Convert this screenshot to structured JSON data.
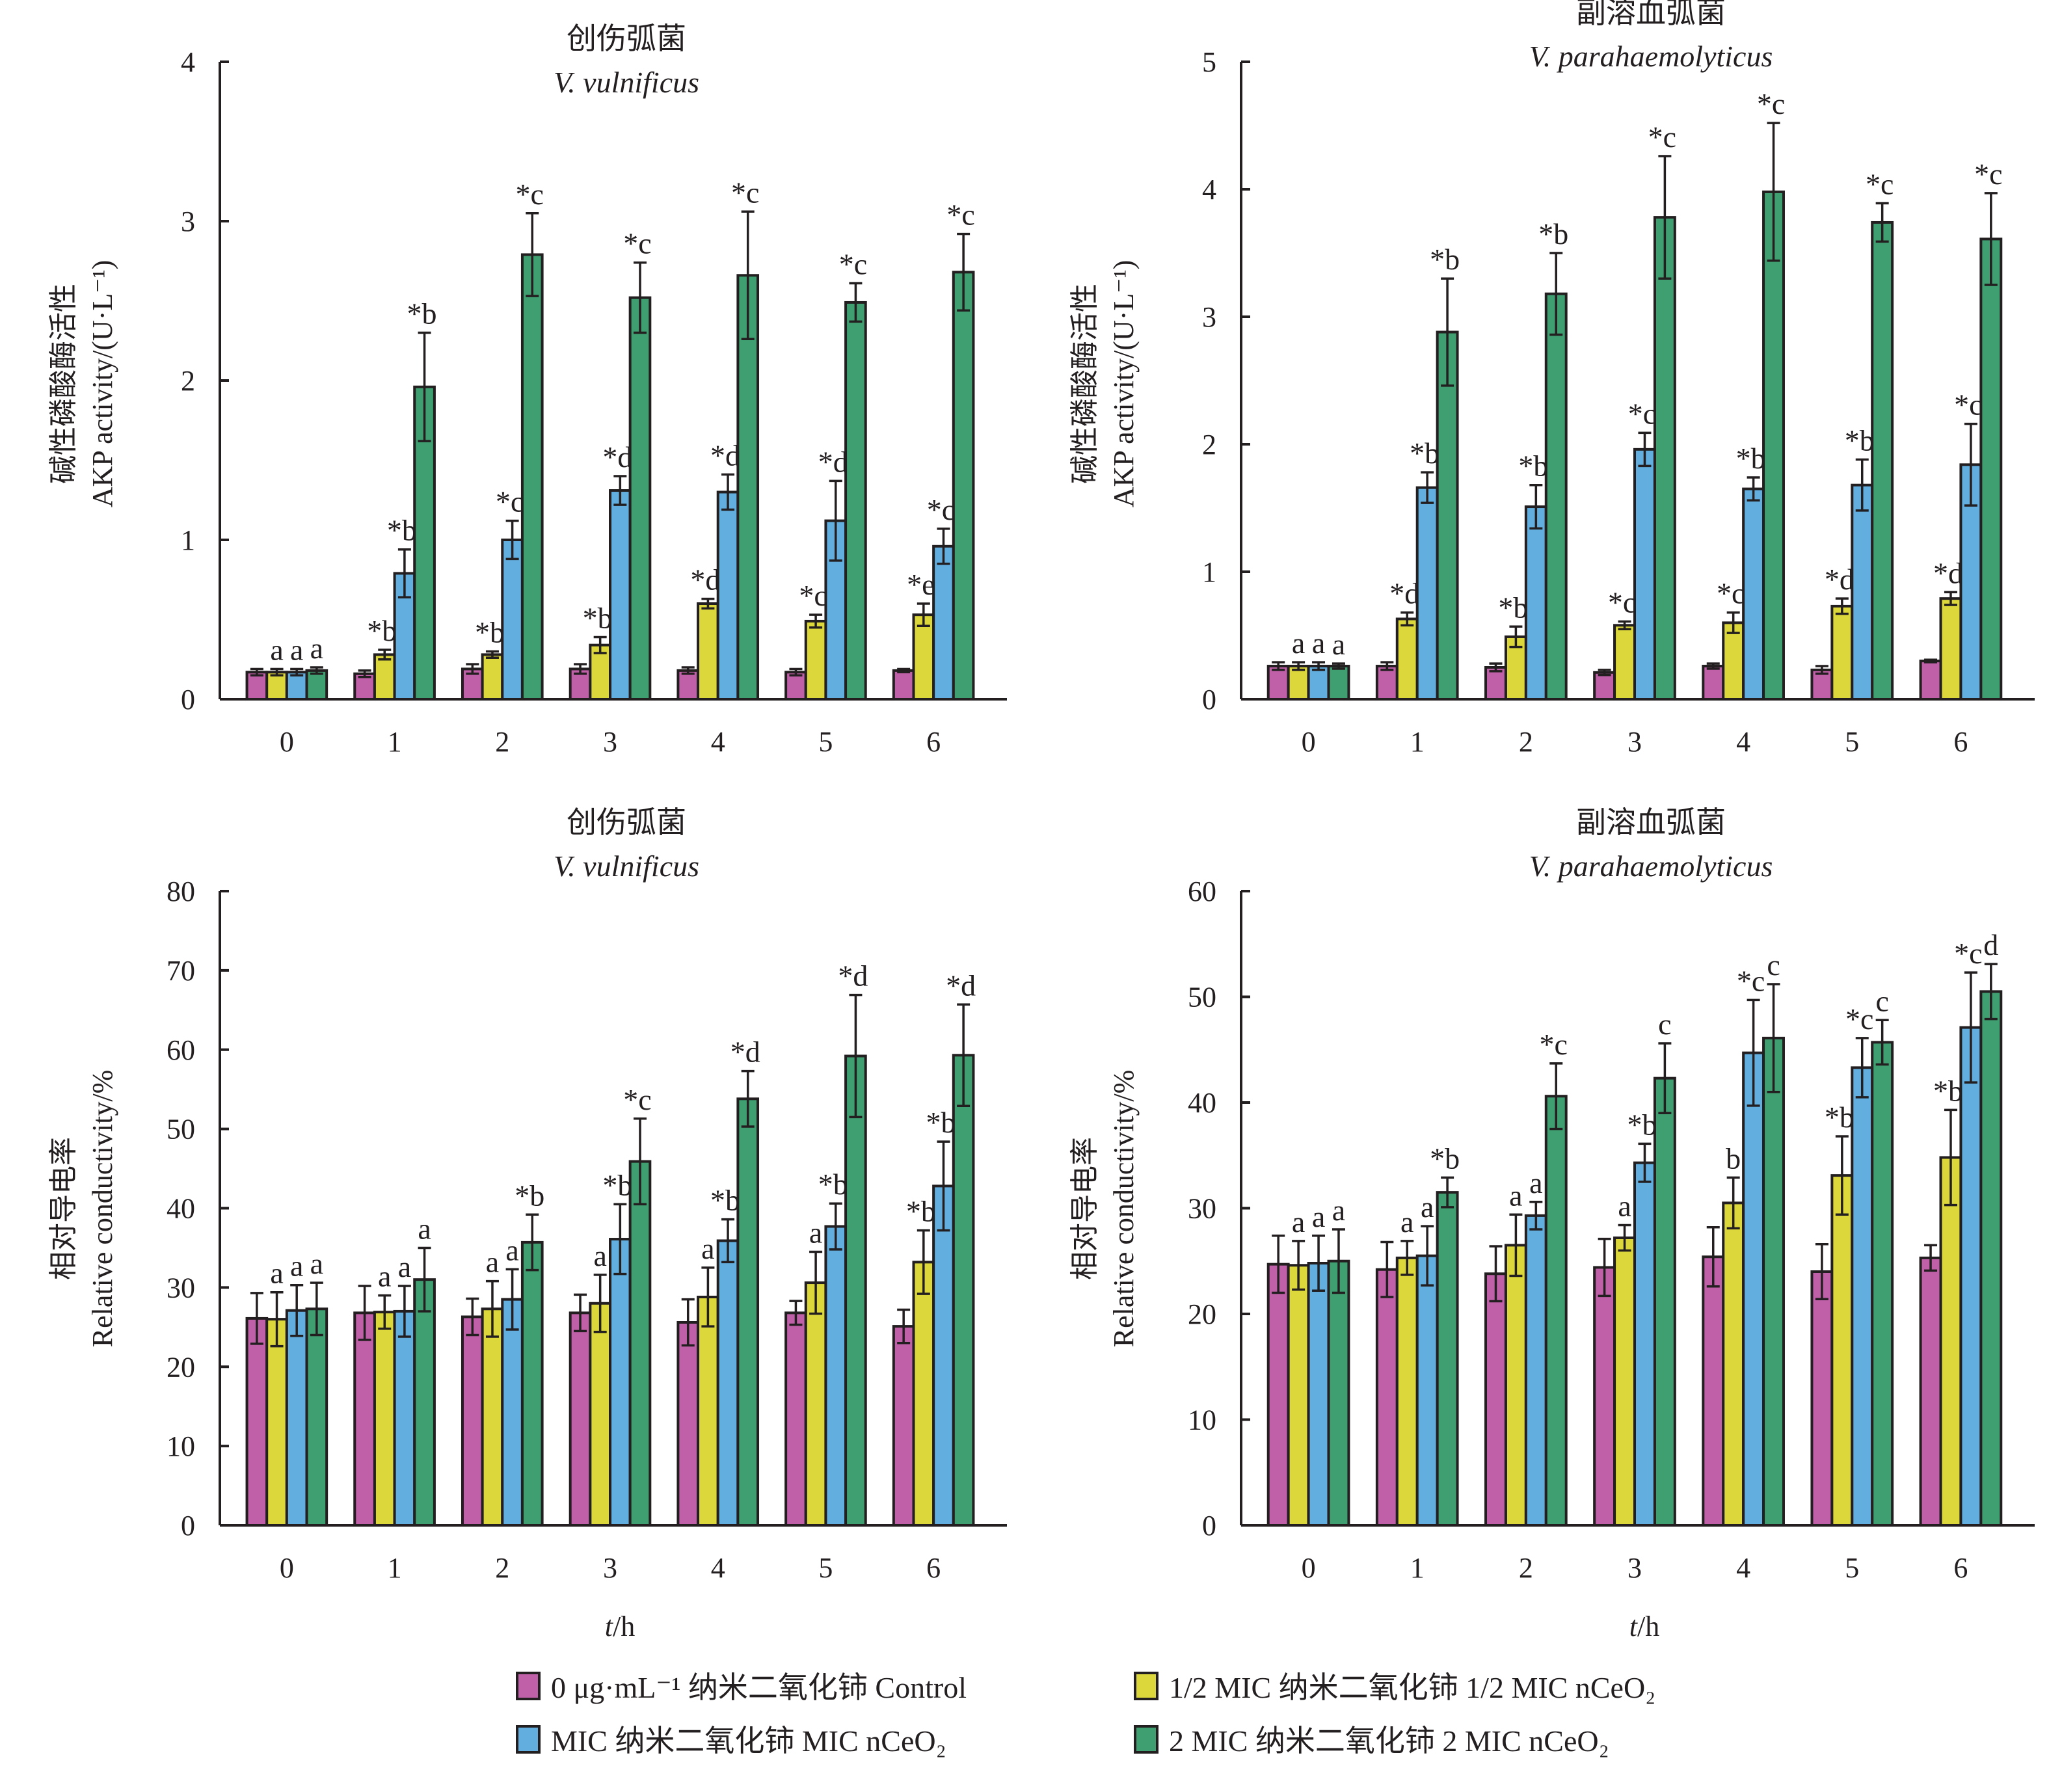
{
  "colors": {
    "control": "#c060a8",
    "half_mic": "#dcd83c",
    "mic": "#62aede",
    "two_mic": "#3f9f71",
    "stroke": "#231f20"
  },
  "legend": {
    "items": [
      {
        "key": "control",
        "label": "0 μg·mL⁻¹ 纳米二氧化铈 Control"
      },
      {
        "key": "half_mic",
        "label": "1/2 MIC 纳米二氧化铈  1/2 MIC nCeO₂"
      },
      {
        "key": "mic",
        "label": "MIC 纳米二氧化铈 MIC nCeO₂"
      },
      {
        "key": "two_mic",
        "label": "2 MIC 纳米二氧化铈  2 MIC nCeO₂"
      }
    ]
  },
  "chart_data": [
    {
      "id": "akp-vulnificus",
      "type": "bar",
      "title_cn": "创伤弧菌",
      "title_en": "V. vulnificus",
      "ylabel_cn": "碱性磷酸酶活性",
      "ylabel_en": "AKP activity/(U·L⁻¹)",
      "xlabel": "",
      "ylim": [
        0,
        4
      ],
      "yticks": [
        "0",
        "1",
        "2",
        "3",
        "4"
      ],
      "categories": [
        "0",
        "1",
        "2",
        "3",
        "4",
        "5",
        "6"
      ],
      "series": [
        {
          "name": "Control",
          "key": "control",
          "values": [
            0.17,
            0.16,
            0.19,
            0.19,
            0.18,
            0.17,
            0.18
          ],
          "errors": [
            0.02,
            0.02,
            0.03,
            0.03,
            0.02,
            0.02,
            0.01
          ],
          "labels": [
            "",
            "",
            "",
            "",
            "",
            "",
            ""
          ]
        },
        {
          "name": "1/2 MIC nCeO2",
          "key": "half_mic",
          "values": [
            0.17,
            0.28,
            0.28,
            0.34,
            0.6,
            0.49,
            0.53
          ],
          "errors": [
            0.02,
            0.03,
            0.02,
            0.05,
            0.03,
            0.04,
            0.07
          ],
          "labels": [
            "a",
            "*b",
            "*b",
            "*b",
            "*d",
            "*c",
            "*e"
          ]
        },
        {
          "name": "MIC nCeO2",
          "key": "mic",
          "values": [
            0.17,
            0.79,
            1.0,
            1.31,
            1.3,
            1.12,
            0.96
          ],
          "errors": [
            0.02,
            0.15,
            0.12,
            0.09,
            0.11,
            0.25,
            0.11
          ],
          "labels": [
            "a",
            "*b",
            "*c",
            "*d",
            "*d",
            "*d",
            "*c"
          ]
        },
        {
          "name": "2 MIC nCeO2",
          "key": "two_mic",
          "values": [
            0.18,
            1.96,
            2.79,
            2.52,
            2.66,
            2.49,
            2.68
          ],
          "errors": [
            0.02,
            0.34,
            0.26,
            0.22,
            0.4,
            0.12,
            0.24
          ],
          "labels": [
            "a",
            "*b",
            "*c",
            "*c",
            "*c",
            "*c",
            "*c"
          ]
        }
      ]
    },
    {
      "id": "akp-parahaemolyticus",
      "type": "bar",
      "title_cn": "副溶血弧菌",
      "title_en": "V. parahaemolyticus",
      "ylabel_cn": "碱性磷酸酶活性",
      "ylabel_en": "AKP activity/(U·L⁻¹)",
      "xlabel": "",
      "ylim": [
        0,
        5
      ],
      "yticks": [
        "0",
        "1",
        "2",
        "3",
        "4",
        "5"
      ],
      "categories": [
        "0",
        "1",
        "2",
        "3",
        "4",
        "5",
        "6"
      ],
      "series": [
        {
          "name": "Control",
          "key": "control",
          "values": [
            0.26,
            0.26,
            0.25,
            0.21,
            0.26,
            0.23,
            0.3
          ],
          "errors": [
            0.03,
            0.03,
            0.03,
            0.02,
            0.02,
            0.03,
            0.01
          ],
          "labels": [
            "",
            "",
            "",
            "",
            "",
            "",
            ""
          ]
        },
        {
          "name": "1/2 MIC nCeO2",
          "key": "half_mic",
          "values": [
            0.26,
            0.63,
            0.49,
            0.58,
            0.6,
            0.73,
            0.79
          ],
          "errors": [
            0.03,
            0.05,
            0.08,
            0.03,
            0.08,
            0.06,
            0.05
          ],
          "labels": [
            "a",
            "*d",
            "*b",
            "*c",
            "*c",
            "*d",
            "*d"
          ]
        },
        {
          "name": "MIC nCeO2",
          "key": "mic",
          "values": [
            0.26,
            1.66,
            1.51,
            1.96,
            1.65,
            1.68,
            1.84
          ],
          "errors": [
            0.03,
            0.12,
            0.17,
            0.13,
            0.09,
            0.2,
            0.32
          ],
          "labels": [
            "a",
            "*b",
            "*b",
            "*c",
            "*b",
            "*b",
            "*c"
          ]
        },
        {
          "name": "2 MIC nCeO2",
          "key": "two_mic",
          "values": [
            0.26,
            2.88,
            3.18,
            3.78,
            3.98,
            3.74,
            3.61
          ],
          "errors": [
            0.02,
            0.42,
            0.32,
            0.48,
            0.54,
            0.15,
            0.36
          ],
          "labels": [
            "a",
            "*b",
            "*b",
            "*c",
            "*c",
            "*c",
            "*c"
          ]
        }
      ]
    },
    {
      "id": "conductivity-vulnificus",
      "type": "bar",
      "title_cn": "创伤弧菌",
      "title_en": "V. vulnificus",
      "ylabel_cn": "相对导电率",
      "ylabel_en": "Relative conductivity/%",
      "xlabel": "t/h",
      "ylim": [
        0,
        80
      ],
      "yticks": [
        "0",
        "10",
        "20",
        "30",
        "40",
        "50",
        "60",
        "70",
        "80"
      ],
      "categories": [
        "0",
        "1",
        "2",
        "3",
        "4",
        "5",
        "6"
      ],
      "series": [
        {
          "name": "Control",
          "key": "control",
          "values": [
            26.1,
            26.8,
            26.3,
            26.8,
            25.6,
            26.8,
            25.1
          ],
          "errors": [
            3.2,
            3.4,
            2.3,
            2.3,
            2.9,
            1.5,
            2.1
          ],
          "labels": [
            "",
            "",
            "",
            "",
            "",
            "",
            ""
          ]
        },
        {
          "name": "1/2 MIC nCeO2",
          "key": "half_mic",
          "values": [
            26.0,
            26.9,
            27.3,
            28.0,
            28.8,
            30.6,
            33.2
          ],
          "errors": [
            3.4,
            2.1,
            3.5,
            3.6,
            3.7,
            3.9,
            4.0
          ],
          "labels": [
            "a",
            "a",
            "a",
            "a",
            "a",
            "a",
            "*b"
          ]
        },
        {
          "name": "MIC nCeO2",
          "key": "mic",
          "values": [
            27.1,
            27.0,
            28.5,
            36.1,
            35.9,
            37.7,
            42.8
          ],
          "errors": [
            3.2,
            3.2,
            3.8,
            4.4,
            2.7,
            2.9,
            5.6
          ],
          "labels": [
            "a",
            "a",
            "a",
            "*b",
            "*b",
            "*b",
            "*b"
          ]
        },
        {
          "name": "2 MIC nCeO2",
          "key": "two_mic",
          "values": [
            27.3,
            31.0,
            35.7,
            45.9,
            53.8,
            59.2,
            59.3
          ],
          "errors": [
            3.3,
            4.0,
            3.5,
            5.4,
            3.5,
            7.7,
            6.4
          ],
          "labels": [
            "a",
            "a",
            "*b",
            "*c",
            "*d",
            "*d",
            "*d"
          ]
        }
      ]
    },
    {
      "id": "conductivity-parahaemolyticus",
      "type": "bar",
      "title_cn": "副溶血弧菌",
      "title_en": "V. parahaemolyticus",
      "ylabel_cn": "相对导电率",
      "ylabel_en": "Relative conductivity/%",
      "xlabel": "t/h",
      "ylim": [
        0,
        60
      ],
      "yticks": [
        "0",
        "10",
        "20",
        "30",
        "40",
        "50",
        "60"
      ],
      "categories": [
        "0",
        "1",
        "2",
        "3",
        "4",
        "5",
        "6"
      ],
      "series": [
        {
          "name": "Control",
          "key": "control",
          "values": [
            24.7,
            24.2,
            23.8,
            24.4,
            25.4,
            24.0,
            25.3
          ],
          "errors": [
            2.7,
            2.6,
            2.6,
            2.7,
            2.8,
            2.6,
            1.2
          ],
          "labels": [
            "",
            "",
            "",
            "",
            "",
            "",
            ""
          ]
        },
        {
          "name": "1/2 MIC nCeO2",
          "key": "half_mic",
          "values": [
            24.6,
            25.3,
            26.5,
            27.2,
            30.5,
            33.1,
            34.8
          ],
          "errors": [
            2.3,
            1.6,
            2.9,
            1.2,
            2.4,
            3.7,
            4.5
          ],
          "labels": [
            "a",
            "a",
            "a",
            "a",
            "b",
            "*b",
            "*b"
          ]
        },
        {
          "name": "MIC nCeO2",
          "key": "mic",
          "values": [
            24.8,
            25.5,
            29.3,
            34.3,
            44.7,
            43.3,
            47.1
          ],
          "errors": [
            2.6,
            2.8,
            1.3,
            1.8,
            5.0,
            2.8,
            5.2
          ],
          "labels": [
            "a",
            "a",
            "a",
            "*b",
            "*c",
            "*c",
            "*c"
          ]
        },
        {
          "name": "2 MIC nCeO2",
          "key": "two_mic",
          "values": [
            25.0,
            31.5,
            40.6,
            42.3,
            46.1,
            45.7,
            50.5
          ],
          "errors": [
            3.0,
            1.4,
            3.1,
            3.3,
            5.1,
            2.1,
            2.6
          ],
          "labels": [
            "a",
            "*b",
            "*c",
            "c",
            "c",
            "c",
            "d"
          ]
        }
      ]
    }
  ]
}
